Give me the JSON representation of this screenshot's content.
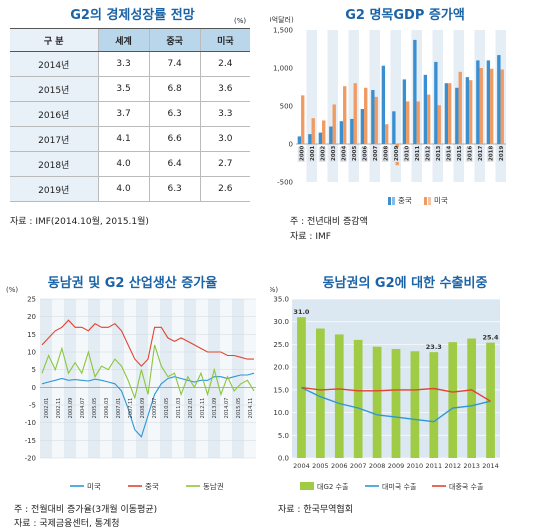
{
  "table_panel": {
    "title": "G2의 경제성장률 전망",
    "unit": "(%)",
    "headers": [
      "구 분",
      "세계",
      "중국",
      "미국"
    ],
    "rows": [
      [
        "2014년",
        "3.3",
        "7.4",
        "2.4"
      ],
      [
        "2015년",
        "3.5",
        "6.8",
        "3.6"
      ],
      [
        "2016년",
        "3.7",
        "6.3",
        "3.3"
      ],
      [
        "2017년",
        "4.1",
        "6.6",
        "3.0"
      ],
      [
        "2018년",
        "4.0",
        "6.4",
        "2.7"
      ],
      [
        "2019년",
        "4.0",
        "6.3",
        "2.6"
      ]
    ],
    "source": "자료 : IMF(2014.10월, 2015.1월)"
  },
  "gdp_panel": {
    "title": "G2 명목GDP 증가액",
    "unit": "(10억달러)",
    "note1": "주 : 전년대비 증감액",
    "note2": "자료 : IMF"
  },
  "prod_panel": {
    "title": "동남권 및 G2 산업생산 증가율",
    "unit": "(%)",
    "note1": "주 : 전월대비 증가율(3개월 이동평균)",
    "note2": "자료 : 국제금융센터, 통계청"
  },
  "export_panel": {
    "title": "동남권의 G2에 대한 수출비중",
    "unit": "(%)",
    "note1": "자료 : 한국무역협회"
  },
  "chart_data": [
    {
      "type": "bar",
      "categories": [
        "2000",
        "2001",
        "2002",
        "2003",
        "2004",
        "2005",
        "2006",
        "2007",
        "2008",
        "2009",
        "2010",
        "2011",
        "2012",
        "2013",
        "2014",
        "2015",
        "2016",
        "2017",
        "2018",
        "2019"
      ],
      "series": [
        {
          "name": "중국",
          "color": "#3a8fd1",
          "values": [
            100,
            130,
            150,
            230,
            300,
            330,
            460,
            710,
            1030,
            430,
            850,
            1370,
            910,
            1080,
            800,
            740,
            880,
            1100,
            1100,
            1170
          ]
        },
        {
          "name": "미국",
          "color": "#ef9b63",
          "values": [
            640,
            340,
            310,
            520,
            760,
            800,
            740,
            620,
            260,
            -280,
            560,
            560,
            650,
            510,
            800,
            950,
            840,
            1000,
            990,
            980
          ]
        }
      ],
      "ylim": [
        -500,
        1500
      ],
      "yticks": [
        -500,
        0,
        500,
        1000,
        1500
      ],
      "ytick_labels": [
        "-500",
        "0",
        "500",
        "1,000",
        "1,500"
      ]
    },
    {
      "type": "line",
      "x_labels": [
        "2002.01",
        "2002.11",
        "2003.09",
        "2004.07",
        "2005.05",
        "2006.03",
        "2007.01",
        "2007.11",
        "2008.09",
        "2009.07",
        "2010.05",
        "2011.03",
        "2012.01",
        "2012.11",
        "2013.09",
        "2014.07",
        "2015.05",
        "2014.11"
      ],
      "ylim": [
        -20,
        25
      ],
      "yticks": [
        -20,
        -15,
        -10,
        -5,
        0,
        5,
        10,
        15,
        20,
        25
      ],
      "series": [
        {
          "name": "미국",
          "color": "#2f97d6",
          "values": [
            1,
            1.5,
            2,
            2.5,
            2,
            2.2,
            2,
            1.8,
            2.3,
            2,
            1.5,
            1,
            -1,
            -6,
            -12,
            -14,
            -8,
            -2,
            1,
            2.5,
            3,
            2.5,
            2,
            1.5,
            2,
            2,
            3,
            3,
            2.5,
            3,
            3.5,
            3.5,
            4
          ]
        },
        {
          "name": "중국",
          "color": "#e2442f",
          "values": [
            12,
            14,
            16,
            17,
            19,
            17,
            17,
            16,
            18,
            17,
            17,
            18,
            16,
            12,
            8,
            6,
            8,
            17,
            17,
            14,
            13,
            14,
            13,
            12,
            11,
            10,
            10,
            10,
            9,
            9,
            8.5,
            8,
            8
          ]
        },
        {
          "name": "동남권",
          "color": "#8cc63e",
          "values": [
            4,
            9,
            5,
            11,
            4,
            7,
            4,
            10,
            3,
            6,
            5,
            8,
            6,
            2,
            -3,
            5,
            -2,
            12,
            6,
            3,
            4,
            -2,
            3,
            0,
            4,
            -2,
            5,
            -2,
            3,
            -1,
            1,
            2,
            -1
          ]
        }
      ]
    },
    {
      "type": "bar",
      "categories": [
        "2004",
        "2005",
        "2006",
        "2007",
        "2008",
        "2009",
        "2010",
        "2011",
        "2012",
        "2013",
        "2014"
      ],
      "ylim": [
        0,
        35
      ],
      "yticks": [
        0,
        5,
        10,
        15,
        20,
        25,
        30,
        35
      ],
      "series": [
        {
          "name": "대G2 수출",
          "color": "#9fcb45",
          "values": [
            31.0,
            28.5,
            27.2,
            26.0,
            24.5,
            24.0,
            23.5,
            23.3,
            25.5,
            26.3,
            25.4
          ]
        },
        {
          "name": "대미국 수출",
          "color": "#2f97d6",
          "values": [
            15.5,
            13.5,
            12.0,
            11.0,
            9.5,
            9.0,
            8.5,
            8.0,
            11.0,
            11.5,
            12.5
          ]
        },
        {
          "name": "대중국 수출",
          "color": "#e2442f",
          "values": [
            15.5,
            15.0,
            15.2,
            14.8,
            14.8,
            15.0,
            15.0,
            15.3,
            14.5,
            15.0,
            12.5
          ]
        }
      ],
      "data_labels": [
        "31.0",
        "23.3",
        "25.4"
      ]
    }
  ]
}
